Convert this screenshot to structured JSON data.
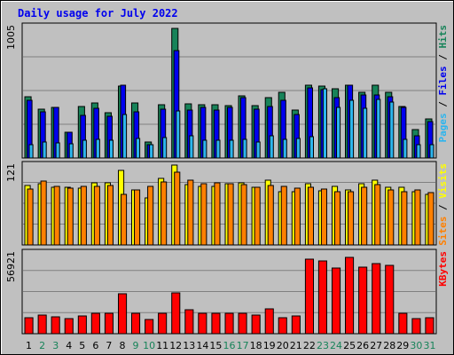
{
  "chart_data": {
    "type": "bar",
    "title": "Daily usage for July 2022",
    "categories": [
      "1",
      "2",
      "3",
      "4",
      "5",
      "6",
      "7",
      "8",
      "9",
      "10",
      "11",
      "12",
      "13",
      "14",
      "15",
      "16",
      "17",
      "18",
      "19",
      "20",
      "21",
      "22",
      "23",
      "24",
      "25",
      "26",
      "27",
      "28",
      "29",
      "30",
      "31"
    ],
    "weekend_days": [
      2,
      3,
      9,
      10,
      16,
      17,
      23,
      24,
      30,
      31
    ],
    "panels": [
      {
        "name": "hits-files-pages",
        "ymax_label": "1005",
        "ymax": 1005,
        "series": [
          {
            "name": "Hits",
            "color": "#178359",
            "values": [
              470,
              375,
              390,
              200,
              395,
              420,
              345,
              550,
              420,
              120,
              410,
              990,
              415,
              405,
              410,
              400,
              475,
              400,
              460,
              500,
              365,
              555,
              550,
              530,
              555,
              505,
              560,
              505,
              395,
              215,
              300
            ]
          },
          {
            "name": "Files",
            "color": "#0000ee",
            "values": [
              440,
              355,
              385,
              200,
              325,
              380,
              320,
              560,
              350,
              100,
              375,
              820,
              370,
              385,
              365,
              385,
              465,
              375,
              395,
              440,
              335,
              535,
              520,
              465,
              555,
              485,
              485,
              470,
              390,
              170,
              280
            ]
          },
          {
            "name": "Pages",
            "color": "#2cb5ee",
            "values": [
              105,
              120,
              115,
              110,
              135,
              145,
              135,
              335,
              150,
              105,
              155,
              360,
              170,
              135,
              135,
              135,
              140,
              120,
              170,
              145,
              150,
              160,
              530,
              390,
              440,
              380,
              450,
              425,
              140,
              105,
              100
            ]
          }
        ]
      },
      {
        "name": "visits-sites",
        "ymax_label": "121",
        "ymax": 121,
        "series": [
          {
            "name": "Visits",
            "color": "#ffff00",
            "values": [
              90,
              93,
              87,
              88,
              86,
              94,
              94,
              113,
              84,
              71,
              101,
              121,
              92,
              89,
              89,
              93,
              94,
              88,
              98,
              81,
              80,
              93,
              82,
              89,
              83,
              93,
              98,
              87,
              87,
              80,
              76
            ]
          },
          {
            "name": "Sites",
            "color": "#ff8000",
            "values": [
              85,
              97,
              89,
              86,
              89,
              89,
              90,
              76,
              84,
              89,
              96,
              110,
              98,
              93,
              94,
              93,
              91,
              87,
              90,
              89,
              86,
              87,
              85,
              80,
              80,
              88,
              91,
              84,
              81,
              83,
              79
            ]
          }
        ]
      },
      {
        "name": "kbytes",
        "ymax_label": "56921",
        "ymax": 56921,
        "series": [
          {
            "name": "KBytes",
            "color": "#ff0000",
            "values": [
              11200,
              13200,
              11900,
              10600,
              12500,
              14100,
              14100,
              27900,
              14500,
              10000,
              14500,
              28700,
              16600,
              14300,
              14300,
              14100,
              14100,
              13200,
              17600,
              11200,
              12500,
              52600,
              51100,
              46400,
              54000,
              46700,
              49600,
              48400,
              14100,
              10700,
              11200
            ]
          }
        ]
      }
    ],
    "right_labels": [
      {
        "panel": 0,
        "parts": [
          {
            "text": "Pages",
            "color": "#2cb5ee"
          },
          {
            "text": " / ",
            "color": "#000000"
          },
          {
            "text": "Files",
            "color": "#0000ee"
          },
          {
            "text": " / ",
            "color": "#000000"
          },
          {
            "text": "Hits",
            "color": "#178359"
          }
        ]
      },
      {
        "panel": 1,
        "parts": [
          {
            "text": "Sites",
            "color": "#ff8000"
          },
          {
            "text": " / ",
            "color": "#000000"
          },
          {
            "text": "Visits",
            "color": "#ffff00"
          }
        ]
      },
      {
        "panel": 2,
        "parts": [
          {
            "text": "KBytes",
            "color": "#ff0000"
          }
        ]
      }
    ],
    "colors": {
      "title": "#0000ee",
      "frame_bg": "#c0c0c0",
      "plot_bg": "#c0c0c0",
      "weekday_label": "#000000",
      "weekend_label": "#178359",
      "grid": "#808080"
    },
    "grid": true,
    "legend": "right-side vertical"
  }
}
